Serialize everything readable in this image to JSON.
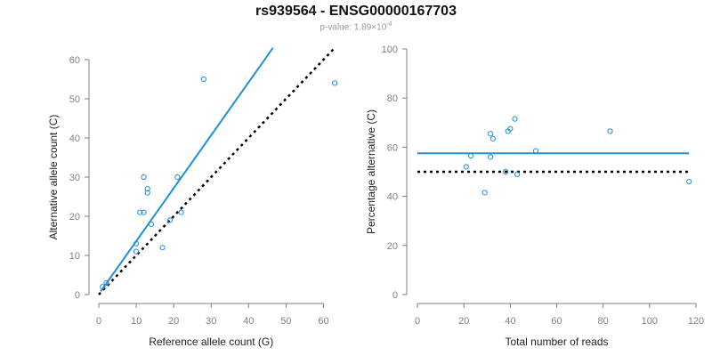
{
  "title": "rs939564 - ENSG00000167703",
  "subtitle": {
    "prefix": "p-value: 1.89×10",
    "exponent": "-4"
  },
  "colors": {
    "points": "#1f8fd6",
    "fit_line": "#1f8fd6",
    "reference_line": "#000000",
    "axis": "#808080"
  },
  "chart_data": [
    {
      "type": "scatter",
      "xlabel": "Reference allele count (G)",
      "ylabel": "Alternative allele count (C)",
      "xlim": [
        0,
        62.5
      ],
      "ylim": [
        0,
        60
      ],
      "xticks": [
        0,
        10,
        20,
        30,
        40,
        50,
        60
      ],
      "yticks": [
        0,
        10,
        20,
        30,
        40,
        50,
        60
      ],
      "points": [
        [
          1,
          2
        ],
        [
          2,
          3
        ],
        [
          10,
          13
        ],
        [
          10,
          11
        ],
        [
          11,
          21
        ],
        [
          12,
          21
        ],
        [
          12,
          30
        ],
        [
          13,
          27
        ],
        [
          13,
          26
        ],
        [
          14,
          18
        ],
        [
          17,
          12
        ],
        [
          19,
          19
        ],
        [
          21,
          30
        ],
        [
          22,
          21
        ],
        [
          28,
          55
        ],
        [
          63,
          54
        ]
      ],
      "lines": [
        {
          "kind": "fit",
          "style": "solid",
          "from": [
            0.5,
            0.8
          ],
          "to": [
            46.5,
            63
          ]
        },
        {
          "kind": "reference",
          "style": "dotted",
          "from": [
            0,
            0
          ],
          "to": [
            63,
            63
          ]
        }
      ],
      "grid": false,
      "legend": "none"
    },
    {
      "type": "scatter",
      "xlabel": "Total number of reads",
      "ylabel": "Percentage alternative (C)",
      "xlim": [
        0,
        120
      ],
      "ylim": [
        0,
        100
      ],
      "xticks": [
        0,
        20,
        40,
        60,
        80,
        100,
        120
      ],
      "yticks": [
        0,
        20,
        40,
        60,
        80,
        100
      ],
      "points": [
        [
          21,
          52
        ],
        [
          23,
          56.5
        ],
        [
          29,
          41.5
        ],
        [
          31.5,
          65.5
        ],
        [
          31.5,
          56
        ],
        [
          32.5,
          63.5
        ],
        [
          38,
          50
        ],
        [
          39,
          66.5
        ],
        [
          40,
          67.5
        ],
        [
          42,
          71.5
        ],
        [
          43,
          49
        ],
        [
          51,
          58.5
        ],
        [
          83,
          66.5
        ],
        [
          117,
          46
        ]
      ],
      "lines": [
        {
          "kind": "fit",
          "style": "solid",
          "from": [
            0,
            57.5
          ],
          "to": [
            117,
            57.5
          ]
        },
        {
          "kind": "reference",
          "style": "dotted",
          "from": [
            0,
            50
          ],
          "to": [
            117,
            50
          ]
        }
      ],
      "grid": false,
      "legend": "none"
    }
  ]
}
